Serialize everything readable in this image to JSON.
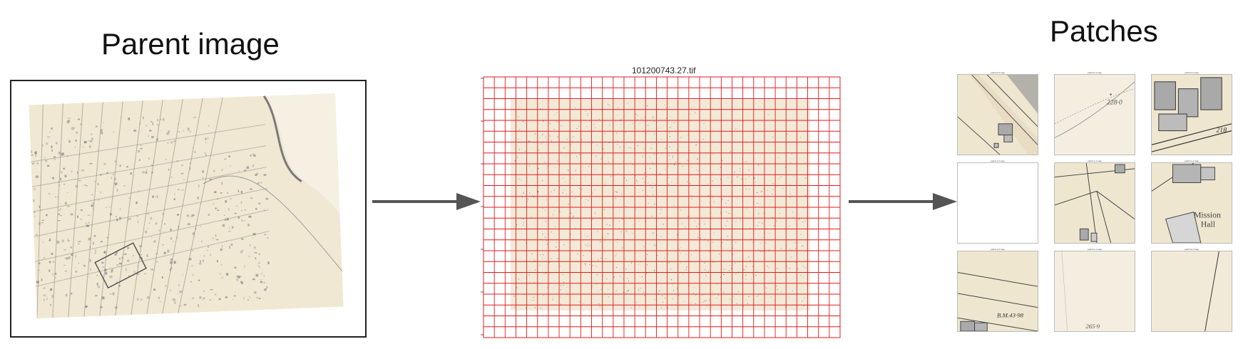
{
  "titles": {
    "parent": "Parent image",
    "patches": "Patches"
  },
  "grid_figure": {
    "filename": "101200743.27.tif",
    "grid_color": "#e31a1c",
    "map_tint": "#f3e9d7"
  },
  "patches": [
    {
      "label": "patch-0-0-map",
      "text": ""
    },
    {
      "label": "patch-0-1-map",
      "text": "228·0"
    },
    {
      "label": "patch-0-2-map",
      "text": "218"
    },
    {
      "label": "patch-1-0-map",
      "text": ""
    },
    {
      "label": "patch-1-1-map",
      "text": ""
    },
    {
      "label": "patch-1-2-map",
      "text": "Mission Hall"
    },
    {
      "label": "patch-2-0-map",
      "text": "B.M.43·98"
    },
    {
      "label": "patch-2-1-map",
      "text": "265·9"
    },
    {
      "label": "patch-2-2-map",
      "text": ""
    }
  ],
  "colors": {
    "paper": "#f1e8d3",
    "ink": "#4a4a4a",
    "arrow": "#555555",
    "grid": "#e31a1c"
  }
}
